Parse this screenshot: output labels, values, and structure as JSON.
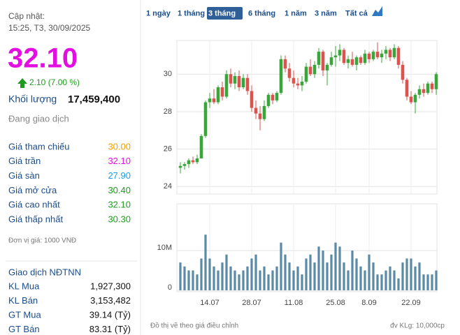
{
  "quote": {
    "updated_label": "Cập nhật:",
    "updated_time": "15:25, T3, 30/09/2025",
    "price": "32.10",
    "change": "2.10 (7.00 %)",
    "volume_label": "Khối lượng",
    "volume": "17,459,400",
    "status": "Đang giao dịch",
    "rows": [
      [
        "Giá tham chiếu",
        "30.00"
      ],
      [
        "Giá trần",
        "32.10"
      ],
      [
        "Giá sàn",
        "27.90"
      ],
      [
        "Giá mở cửa",
        "30.40"
      ],
      [
        "Giá cao nhất",
        "32.10"
      ],
      [
        "Giá thấp nhất",
        "30.30"
      ]
    ],
    "unit_note": "Đơn vị giá: 1000 VNĐ",
    "foreign_title": "Giao dịch NĐTNN",
    "foreign_rows": [
      [
        "KL Mua",
        "1,927,300"
      ],
      [
        "KL Bán",
        "3,153,482"
      ],
      [
        "GT Mua",
        "39.14 (Tỷ)"
      ],
      [
        "GT Bán",
        "83.31 (Tỷ)"
      ]
    ]
  },
  "range_tabs": [
    "1 ngày",
    "1 tháng",
    "3 tháng",
    "6 tháng",
    "1 năm",
    "3 năm",
    "Tất cả"
  ],
  "footer": {
    "left": "Đồ thị vẽ theo giá điều chỉnh",
    "right": "đv KLg: 10,000cp"
  },
  "chart_data": [
    {
      "type": "candlestick",
      "up_color": "#3aa53a",
      "down_color": "#d9534f",
      "categories": [
        null,
        null,
        null,
        null,
        null,
        null,
        null,
        "14.07",
        null,
        null,
        null,
        null,
        null,
        null,
        null,
        null,
        null,
        "28.07",
        null,
        null,
        null,
        null,
        null,
        null,
        null,
        null,
        null,
        "11.08",
        null,
        null,
        null,
        null,
        null,
        null,
        null,
        null,
        null,
        "25.08",
        null,
        null,
        null,
        null,
        null,
        null,
        null,
        "8.09",
        null,
        null,
        null,
        null,
        null,
        null,
        null,
        null,
        null,
        "22.09",
        null,
        null,
        null,
        null,
        null,
        null
      ],
      "open": [
        25.0,
        25.1,
        25.2,
        25.4,
        25.3,
        25.5,
        26.7,
        28.5,
        28.7,
        28.5,
        29.3,
        28.8,
        30.0,
        29.5,
        29.9,
        29.3,
        29.8,
        29.1,
        28.2,
        27.9,
        27.6,
        28.3,
        28.9,
        28.6,
        29.0,
        30.8,
        30.3,
        29.8,
        29.5,
        29.4,
        29.6,
        30.4,
        30.0,
        30.5,
        31.2,
        30.2,
        30.5,
        30.9,
        31.0,
        31.3,
        30.6,
        30.8,
        30.5,
        30.9,
        30.6,
        31.1,
        30.8,
        31.2,
        30.9,
        31.1,
        31.3,
        30.9,
        31.4,
        30.5,
        29.7,
        28.8,
        28.5,
        28.9,
        29.2,
        29.0,
        29.5,
        29.2
      ],
      "high": [
        25.3,
        25.3,
        25.5,
        25.6,
        25.7,
        26.8,
        28.6,
        29.0,
        29.2,
        29.4,
        29.6,
        30.2,
        30.3,
        30.1,
        30.2,
        30.0,
        30.0,
        29.4,
        28.6,
        28.3,
        28.6,
        29.0,
        29.0,
        29.1,
        31.0,
        31.0,
        30.6,
        30.2,
        29.8,
        29.9,
        30.6,
        30.8,
        30.7,
        31.4,
        31.3,
        30.6,
        31.2,
        31.5,
        31.6,
        31.4,
        31.0,
        31.2,
        31.0,
        31.0,
        31.3,
        31.2,
        31.3,
        31.7,
        31.3,
        31.5,
        31.4,
        31.6,
        31.5,
        30.7,
        29.8,
        29.1,
        29.0,
        29.4,
        29.5,
        29.6,
        29.6,
        30.1
      ],
      "low": [
        24.7,
        24.9,
        25.0,
        25.2,
        25.2,
        25.5,
        26.6,
        28.2,
        28.4,
        28.4,
        28.6,
        28.7,
        29.3,
        29.2,
        29.1,
        29.2,
        28.9,
        28.0,
        27.6,
        27.0,
        27.5,
        28.2,
        28.4,
        28.5,
        28.9,
        30.1,
        29.6,
        29.3,
        29.2,
        29.1,
        29.5,
        29.9,
        29.8,
        30.3,
        29.9,
        29.4,
        30.4,
        30.4,
        30.7,
        30.5,
        30.3,
        30.4,
        30.2,
        30.5,
        30.5,
        30.6,
        30.7,
        30.8,
        30.6,
        30.8,
        30.7,
        30.8,
        30.3,
        29.5,
        28.6,
        28.4,
        27.9,
        28.7,
        28.8,
        28.9,
        29.0,
        28.9
      ],
      "close": [
        25.1,
        25.2,
        25.4,
        25.3,
        25.5,
        26.7,
        28.5,
        28.7,
        28.5,
        29.3,
        28.8,
        30.0,
        29.5,
        29.9,
        29.3,
        29.8,
        29.1,
        28.2,
        27.9,
        27.6,
        28.3,
        28.9,
        28.6,
        29.0,
        30.8,
        30.3,
        29.8,
        29.5,
        29.4,
        29.6,
        30.4,
        30.0,
        30.5,
        31.2,
        30.2,
        30.5,
        30.9,
        31.0,
        31.3,
        30.6,
        30.8,
        30.5,
        30.9,
        30.6,
        31.1,
        30.8,
        31.2,
        30.9,
        31.1,
        31.3,
        30.9,
        31.4,
        30.5,
        29.7,
        28.8,
        28.5,
        28.9,
        29.2,
        29.0,
        29.5,
        29.2,
        30.0
      ],
      "ylim": [
        23.6,
        31.8
      ],
      "yticks": [
        24,
        26,
        28,
        30
      ],
      "grid": true
    },
    {
      "type": "bar",
      "color": "#5b8aa6",
      "values": [
        7000000,
        6000000,
        5000000,
        5000000,
        4000000,
        8000000,
        14000000,
        8000000,
        6000000,
        5000000,
        7000000,
        9000000,
        6000000,
        5000000,
        4000000,
        5000000,
        6000000,
        8000000,
        9000000,
        5000000,
        6000000,
        4000000,
        5000000,
        6000000,
        12000000,
        9000000,
        7000000,
        5000000,
        6000000,
        4000000,
        8000000,
        9000000,
        7000000,
        11000000,
        10000000,
        7000000,
        9000000,
        12000000,
        11000000,
        7000000,
        5000000,
        10000000,
        8000000,
        6000000,
        5000000,
        9000000,
        7000000,
        4000000,
        4000000,
        5000000,
        6000000,
        5000000,
        3000000,
        7000000,
        8000000,
        8000000,
        6000000,
        7000000,
        4000000,
        4000000,
        4000000,
        5000000
      ],
      "ylim": [
        0,
        20000000
      ],
      "yticks": [
        0,
        {
          "value": 10000000,
          "label": "10M"
        }
      ],
      "grid": true
    }
  ]
}
